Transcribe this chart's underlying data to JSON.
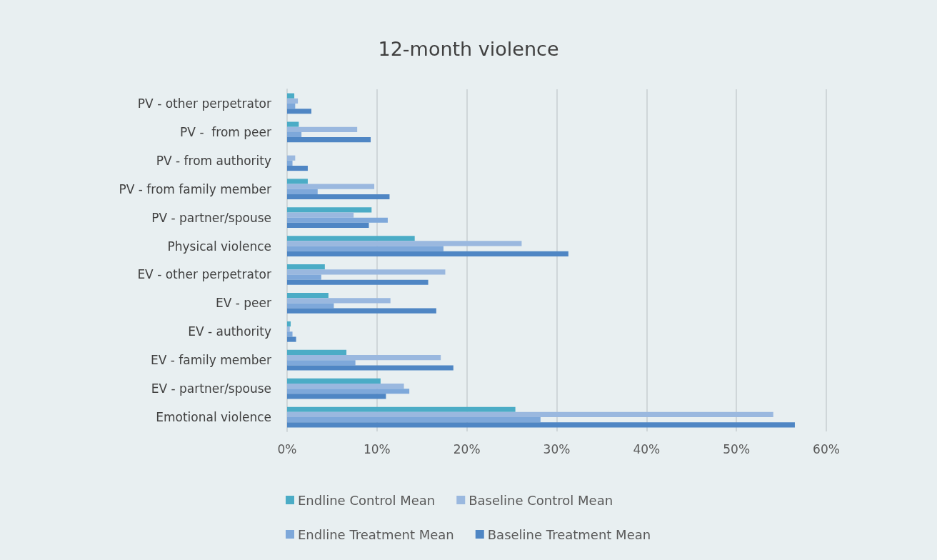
{
  "chart_data": {
    "type": "bar",
    "orientation": "horizontal",
    "title": "12-month violence",
    "categories": [
      "PV - other perpetrator",
      "PV -  from peer",
      "PV - from authority",
      "PV - from family member",
      "PV - partner/spouse",
      "Physical violence",
      "EV - other perpetrator",
      "EV - peer",
      "EV - authority",
      "EV - family member",
      "EV - partner/spouse",
      "Emotional violence"
    ],
    "series": [
      {
        "name": "Endline Control Mean",
        "color": "#4bacc6",
        "values": [
          0.8,
          1.3,
          null,
          2.3,
          9.4,
          14.2,
          4.2,
          4.6,
          0.4,
          6.6,
          10.4,
          25.4
        ]
      },
      {
        "name": "Baseline Control Mean",
        "color": "#9ab8df",
        "values": [
          1.2,
          7.8,
          0.9,
          9.7,
          7.4,
          26.1,
          17.6,
          11.5,
          0.3,
          17.1,
          13.0,
          54.1
        ]
      },
      {
        "name": "Endline Treatment Mean",
        "color": "#7ea8da",
        "values": [
          0.9,
          1.6,
          0.6,
          3.4,
          11.2,
          17.4,
          3.8,
          5.2,
          0.6,
          7.6,
          13.6,
          28.2
        ]
      },
      {
        "name": "Baseline Treatment Mean",
        "color": "#4f86c4",
        "values": [
          2.7,
          9.3,
          2.3,
          11.4,
          9.1,
          31.3,
          15.7,
          16.6,
          1.0,
          18.5,
          11.0,
          56.5
        ]
      }
    ],
    "xlim": [
      0,
      60
    ],
    "xticks": [
      {
        "value": 0,
        "label": "0%"
      },
      {
        "value": 10,
        "label": "10%"
      },
      {
        "value": 20,
        "label": "20%"
      },
      {
        "value": 30,
        "label": "30%"
      },
      {
        "value": 40,
        "label": "40%"
      },
      {
        "value": 50,
        "label": "50%"
      },
      {
        "value": 60,
        "label": "60%"
      }
    ],
    "grid": "x",
    "legend": "bottom"
  }
}
